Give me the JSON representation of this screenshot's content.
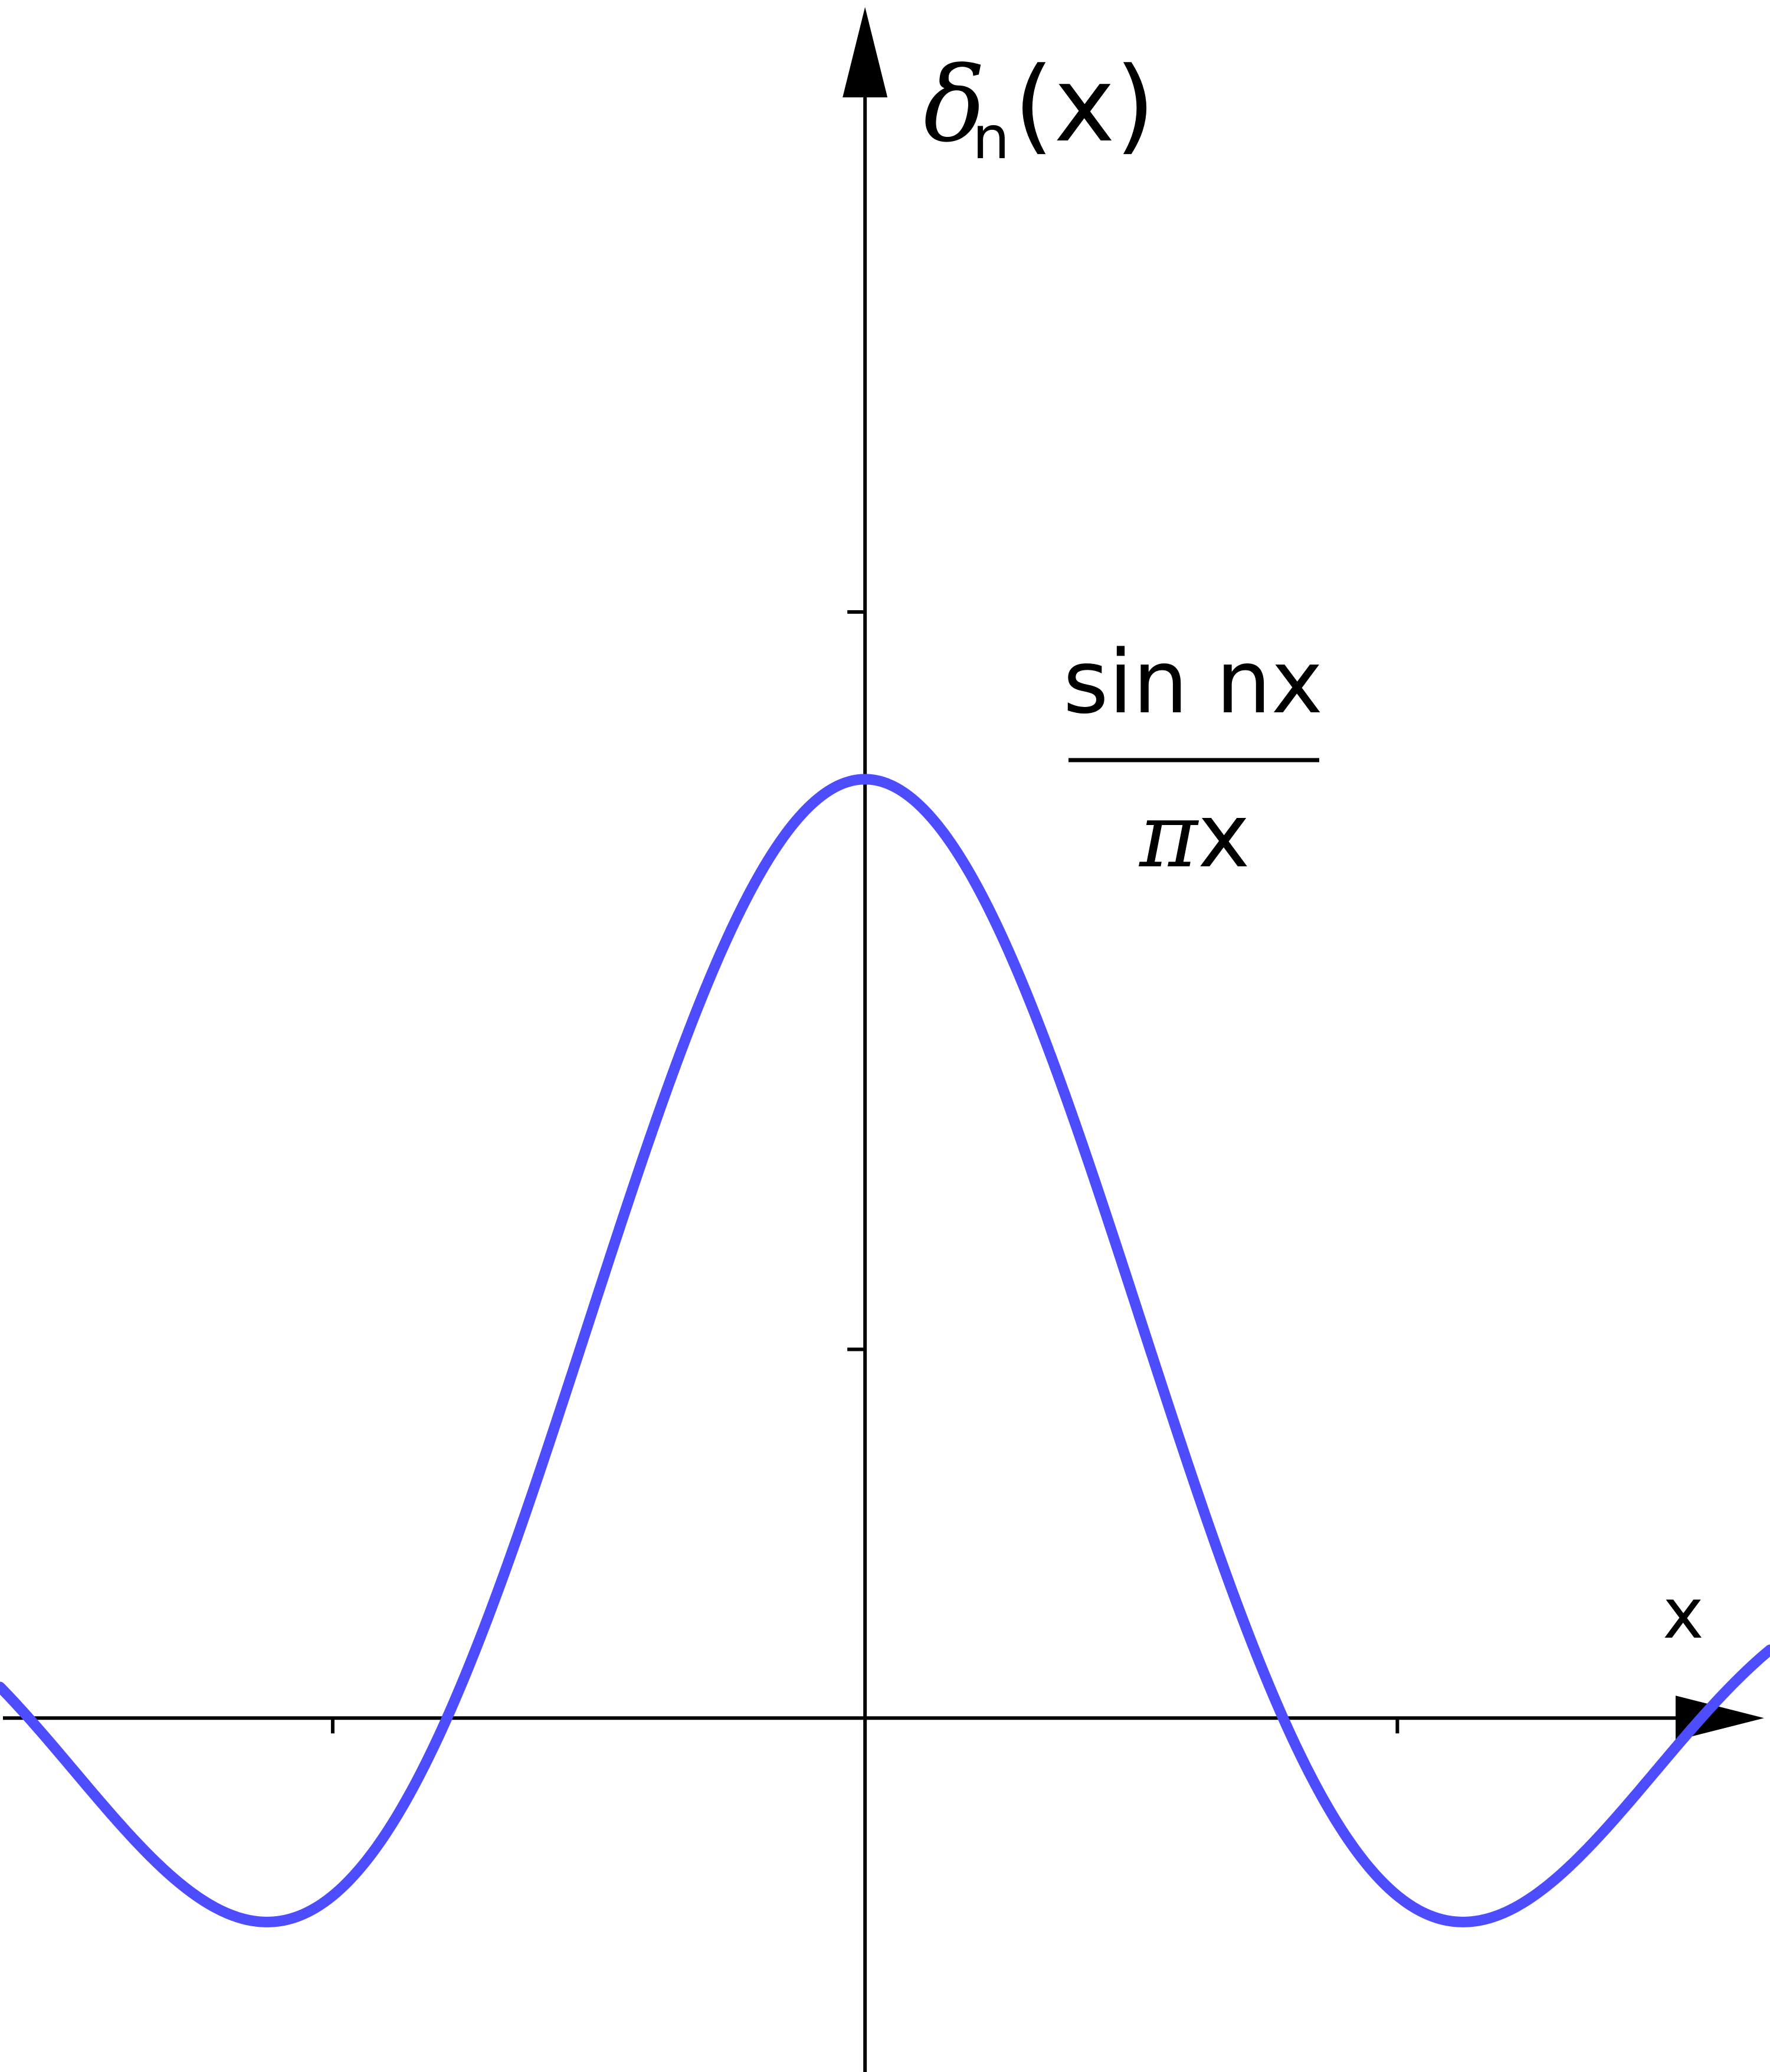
{
  "chart_data": {
    "type": "line",
    "function": "sin(n x) / (pi x)",
    "n": 4,
    "xlim": [
      -1.625,
      1.7
    ],
    "ylim": [
      -0.48,
      2.33
    ],
    "x_ticks": [
      -1,
      1
    ],
    "y_ticks": [
      0.5,
      1.5
    ],
    "grid": false,
    "legend": "none",
    "series": [
      {
        "color": "#4d4dff",
        "samples": 600
      }
    ],
    "axes": {
      "x_label": "x",
      "y_label": {
        "symbol": "δ",
        "subscript": "n",
        "argument": "(x)"
      }
    },
    "annotation": {
      "numerator": "sin nx",
      "denominator_symbol": "π",
      "denominator_var": "x"
    }
  }
}
